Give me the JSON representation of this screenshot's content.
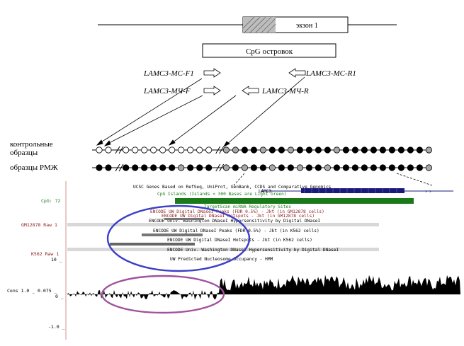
{
  "exon": {
    "label": "экзон 1"
  },
  "cpg_box": {
    "label": "CpG островок"
  },
  "primers": {
    "mc_f1": "LAMC3-MC-F1",
    "mc_r1": "LAMC3-MC-R1",
    "mch_f": "LAMC3-МЧ-F",
    "mch_r": "LAMC3-МЧ-R"
  },
  "rows": {
    "control": [
      "контрольные",
      "образцы"
    ],
    "rmzh": "образцы РМЖ",
    "control_pattern": [
      "o",
      "o",
      "break",
      "o",
      "o",
      "o",
      "o",
      "o",
      "o",
      "o",
      "o",
      "o",
      "o",
      "break",
      "g",
      "g",
      "b",
      "b",
      "g",
      "b",
      "b",
      "g",
      "b",
      "b",
      "b",
      "b",
      "g",
      "b",
      "b",
      "b",
      "b",
      "b",
      "b",
      "b",
      "b",
      "b",
      "g"
    ],
    "rmzh_pattern": [
      "b",
      "b",
      "break",
      "b",
      "b",
      "b",
      "b",
      "b",
      "b",
      "g",
      "b",
      "b",
      "b",
      "break",
      "g",
      "b",
      "g",
      "b",
      "b",
      "g",
      "b",
      "b",
      "g",
      "b",
      "b",
      "g",
      "b",
      "b",
      "b",
      "b",
      "b",
      "b",
      "b",
      "b",
      "b",
      "b",
      "g"
    ]
  },
  "browser": {
    "line_ucsc": "UCSC Genes Based on RefSeq, UniProt, GenBank, CCDS and Comparative Genomics",
    "gene_label": "LAMC3",
    "line_cpg": "CpG Islands (Islands < 300 Bases are Light Green)",
    "line_target": "TargetScan miRNA Regulatory Sites",
    "line_enc1": "ENCODE UW Digital DNaseI Peaks (FDR 0.5%) - Jkt (in GM12878 cells)",
    "line_enc2": "ENCODE UW Digital DNaseI Hotspots - Jkt (in GM12878 cells)",
    "line_enc3": "ENCODE Univ. Washington DNaseI Hypersensitivity by Digital DNaseI",
    "line_enc4": "ENCODE UW Digital DNaseI Peaks (FDR 0.5%) - Jkt (in K562 cells)",
    "line_enc5": "ENCODE UW Digital DNaseI Hotspots - Jkt (in K562 cells)",
    "line_enc6": "ENCODE Univ. Washington DNaseI Hypersensitivity by Digital DNaseI",
    "line_nuc": "UW Predicted Nucleosome Occupancy - HMM",
    "left_cpg": "CpG: 72",
    "left_gm": "GM12878 Raw 1",
    "left_k562": "K562 Raw 1",
    "left_10": "10 _",
    "left_cons": "Cons 1.0 _ 0.075 _",
    "left_0": "0 _",
    "left_neg": "-1.0 _"
  },
  "colors": {
    "blue_ellipse": "#3b3fc4",
    "purple_ellipse": "#a0529e",
    "cpg_green": "#1a7a1a",
    "gene_navy": "#1a1a7a",
    "enc_red": "#8b1a1a",
    "track_gray": "#808080"
  }
}
